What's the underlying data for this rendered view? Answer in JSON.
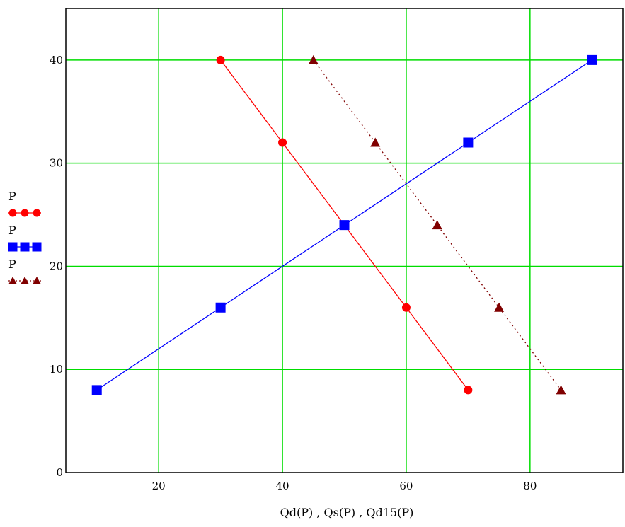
{
  "chart_data": {
    "type": "line",
    "xlabel": "Qd(P) , Qs(P) , Qd15(P)",
    "ylabel": "",
    "xlim": [
      5,
      95
    ],
    "ylim": [
      0,
      45
    ],
    "x_ticks": [
      20,
      40,
      60,
      80
    ],
    "y_ticks": [
      0,
      10,
      20,
      30,
      40
    ],
    "grid": true,
    "grid_color": "#00dd00",
    "legend_position": "left",
    "series": [
      {
        "name": "P",
        "color": "#ff0000",
        "marker": "circle",
        "line_style": "solid",
        "x": [
          30,
          40,
          50,
          60,
          70
        ],
        "y": [
          40,
          32,
          24,
          16,
          8
        ]
      },
      {
        "name": "P",
        "color": "#0000ff",
        "marker": "square",
        "line_style": "solid",
        "x": [
          10,
          30,
          50,
          70,
          90
        ],
        "y": [
          8,
          16,
          24,
          32,
          40
        ]
      },
      {
        "name": "P",
        "color": "#800000",
        "marker": "triangle",
        "line_style": "dotted",
        "x": [
          45,
          55,
          65,
          75,
          85
        ],
        "y": [
          40,
          32,
          24,
          16,
          8
        ]
      }
    ]
  }
}
